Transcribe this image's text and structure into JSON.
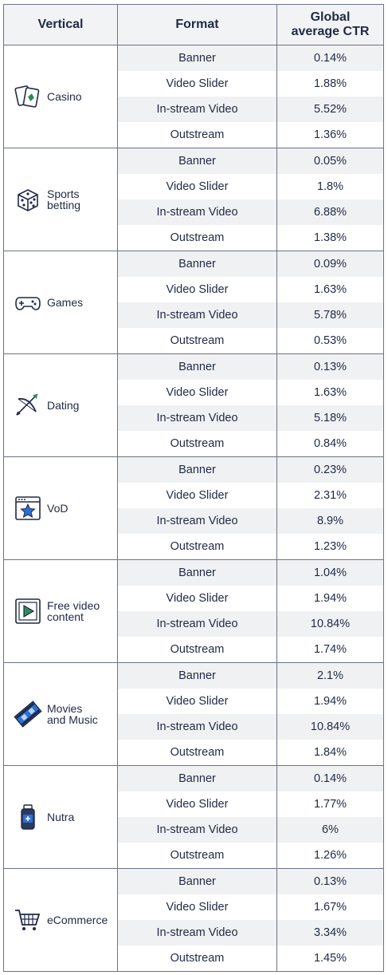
{
  "headers": {
    "vertical": "Vertical",
    "format": "Format",
    "ctr_line1": "Global",
    "ctr_line2": "average CTR"
  },
  "colors": {
    "text": "#1f2a44",
    "shade": "#f0f1f3",
    "border": "#6b7385",
    "icon_green": "#2f8c5a",
    "icon_blue": "#2d6fd8"
  },
  "verticals": [
    {
      "label": "Casino",
      "icon": "playing-cards-icon",
      "rows": [
        {
          "format": "Banner",
          "ctr": "0.14%"
        },
        {
          "format": "Video Slider",
          "ctr": "1.88%"
        },
        {
          "format": "In-stream Video",
          "ctr": "5.52%"
        },
        {
          "format": "Outstream",
          "ctr": "1.36%"
        }
      ]
    },
    {
      "label": "Sports\nbetting",
      "icon": "dice-icon",
      "rows": [
        {
          "format": "Banner",
          "ctr": "0.05%"
        },
        {
          "format": "Video Slider",
          "ctr": "1.8%"
        },
        {
          "format": "In-stream Video",
          "ctr": "6.88%"
        },
        {
          "format": "Outstream",
          "ctr": "1.38%"
        }
      ]
    },
    {
      "label": "Games",
      "icon": "gamepad-icon",
      "rows": [
        {
          "format": "Banner",
          "ctr": "0.09%"
        },
        {
          "format": "Video Slider",
          "ctr": "1.63%"
        },
        {
          "format": "In-stream Video",
          "ctr": "5.78%"
        },
        {
          "format": "Outstream",
          "ctr": "0.53%"
        }
      ]
    },
    {
      "label": "Dating",
      "icon": "cupid-bow-icon",
      "rows": [
        {
          "format": "Banner",
          "ctr": "0.13%"
        },
        {
          "format": "Video Slider",
          "ctr": "1.63%"
        },
        {
          "format": "In-stream Video",
          "ctr": "5.18%"
        },
        {
          "format": "Outstream",
          "ctr": "0.84%"
        }
      ]
    },
    {
      "label": "VoD",
      "icon": "star-window-icon",
      "rows": [
        {
          "format": "Banner",
          "ctr": "0.23%"
        },
        {
          "format": "Video Slider",
          "ctr": "2.31%"
        },
        {
          "format": "In-stream Video",
          "ctr": "8.9%"
        },
        {
          "format": "Outstream",
          "ctr": "1.23%"
        }
      ]
    },
    {
      "label": "Free video\ncontent",
      "icon": "play-screen-icon",
      "rows": [
        {
          "format": "Banner",
          "ctr": "1.04%"
        },
        {
          "format": "Video Slider",
          "ctr": "1.94%"
        },
        {
          "format": "In-stream Video",
          "ctr": "10.84%"
        },
        {
          "format": "Outstream",
          "ctr": "1.74%"
        }
      ]
    },
    {
      "label": "Movies\nand Music",
      "icon": "film-strip-icon",
      "rows": [
        {
          "format": "Banner",
          "ctr": "2.1%"
        },
        {
          "format": "Video Slider",
          "ctr": "1.94%"
        },
        {
          "format": "In-stream Video",
          "ctr": "10.84%"
        },
        {
          "format": "Outstream",
          "ctr": "1.84%"
        }
      ]
    },
    {
      "label": "Nutra",
      "icon": "supplement-bottle-icon",
      "rows": [
        {
          "format": "Banner",
          "ctr": "0.14%"
        },
        {
          "format": "Video Slider",
          "ctr": "1.77%"
        },
        {
          "format": "In-stream Video",
          "ctr": "6%"
        },
        {
          "format": "Outstream",
          "ctr": "1.26%"
        }
      ]
    },
    {
      "label": "eCommerce",
      "icon": "shopping-cart-icon",
      "rows": [
        {
          "format": "Banner",
          "ctr": "0.13%"
        },
        {
          "format": "Video Slider",
          "ctr": "1.67%"
        },
        {
          "format": "In-stream Video",
          "ctr": "3.34%"
        },
        {
          "format": "Outstream",
          "ctr": "1.45%"
        }
      ]
    }
  ]
}
